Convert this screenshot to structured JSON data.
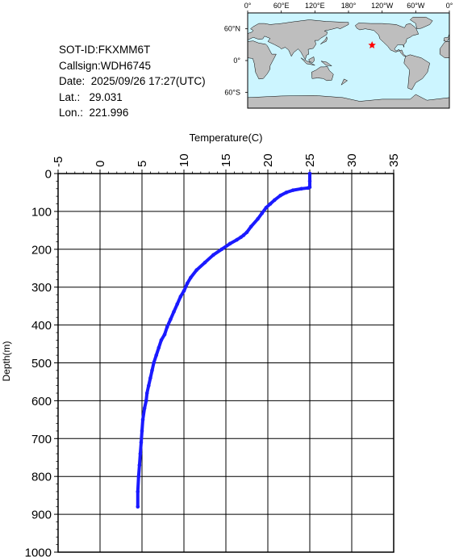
{
  "info": {
    "sot_id": "SOT-ID:FKXMM6T",
    "callsign": "Callsign:WDH6745",
    "date": "Date:  2025/09/26 17:27(UTC)",
    "lat": "Lat.:   29.031",
    "lon": "Lon.:  221.996"
  },
  "map": {
    "top_labels": [
      "0°",
      "60°E",
      "120°E",
      "180°",
      "120°W",
      "60°W",
      "0°"
    ],
    "left_labels": [
      "60°N",
      "0°",
      "60°S"
    ],
    "marker_lat": 29.031,
    "marker_lon": 221.996,
    "ocean_color": "#ccf5ff",
    "land_color": "#bebebe",
    "marker_color": "#ff0000"
  },
  "chart_data": {
    "type": "line",
    "title": "",
    "xlabel": "Temperature(C)",
    "ylabel": "Depth(m)",
    "xlim": [
      -5,
      35
    ],
    "ylim": [
      1000,
      0
    ],
    "x_ticks": [
      -5,
      0,
      5,
      10,
      15,
      20,
      25,
      30,
      35
    ],
    "y_ticks": [
      0,
      100,
      200,
      300,
      400,
      500,
      600,
      700,
      800,
      900,
      1000
    ],
    "grid": true,
    "line_color": "#1a1aff",
    "series": [
      {
        "x": [
          25.0,
          25.0,
          25.0,
          24.8,
          24.0,
          23.0,
          22.2,
          21.5,
          20.8,
          20.3,
          19.8,
          19.3,
          18.8,
          18.0,
          17.5,
          17.1,
          16.8,
          16.3,
          15.5,
          14.5,
          13.5,
          12.5,
          11.5,
          10.8,
          10.4,
          10.0,
          9.6,
          9.2,
          8.8,
          8.4,
          8.0,
          7.7,
          7.3,
          7.0,
          6.7,
          6.4,
          6.2,
          6.0,
          5.8,
          5.6,
          5.5,
          5.3,
          5.1,
          5.0,
          4.9,
          4.8,
          4.7,
          4.6,
          4.5,
          4.5
        ],
        "y": [
          0,
          20,
          36,
          38,
          40,
          44,
          50,
          58,
          70,
          80,
          90,
          105,
          120,
          140,
          155,
          163,
          168,
          175,
          185,
          200,
          215,
          235,
          255,
          275,
          290,
          310,
          325,
          345,
          365,
          385,
          405,
          425,
          440,
          460,
          480,
          500,
          520,
          540,
          560,
          580,
          600,
          620,
          650,
          680,
          710,
          740,
          770,
          800,
          840,
          880
        ]
      }
    ]
  }
}
